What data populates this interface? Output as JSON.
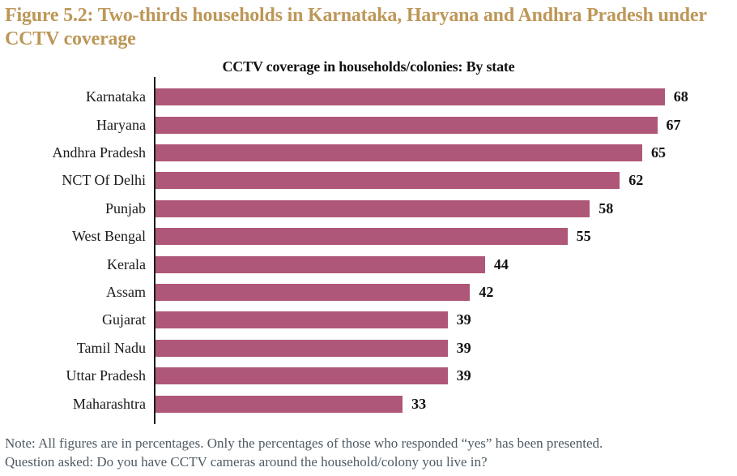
{
  "figure": {
    "title": "Figure 5.2: Two-thirds households in Karnataka, Haryana and Andhra Pradesh under CCTV coverage"
  },
  "chart_data": {
    "type": "bar",
    "orientation": "horizontal",
    "title": "CCTV coverage in households/colonies: By state",
    "categories": [
      "Karnataka",
      "Haryana",
      "Andhra Pradesh",
      "NCT Of Delhi",
      "Punjab",
      "West Bengal",
      "Kerala",
      "Assam",
      "Gujarat",
      "Tamil Nadu",
      "Uttar Pradesh",
      "Maharashtra"
    ],
    "values": [
      68,
      67,
      65,
      62,
      58,
      55,
      44,
      42,
      39,
      39,
      39,
      33
    ],
    "xlabel": "",
    "ylabel": "",
    "xlim": [
      0,
      77
    ],
    "grid": false,
    "data_labels": true,
    "unit": "percent",
    "legend": "none"
  },
  "notes": {
    "line1": "Note: All figures are in percentages. Only the percentages of those who responded “yes” has been presented.",
    "line2": "Question asked: Do you have CCTV cameras around the household/colony you live in?"
  },
  "colors": {
    "figure_title": "#BD9758",
    "bar": "#AF5778",
    "note_text": "#4D5A64",
    "label_text": "#1A1A1A",
    "axis": "#1B1B1B"
  }
}
